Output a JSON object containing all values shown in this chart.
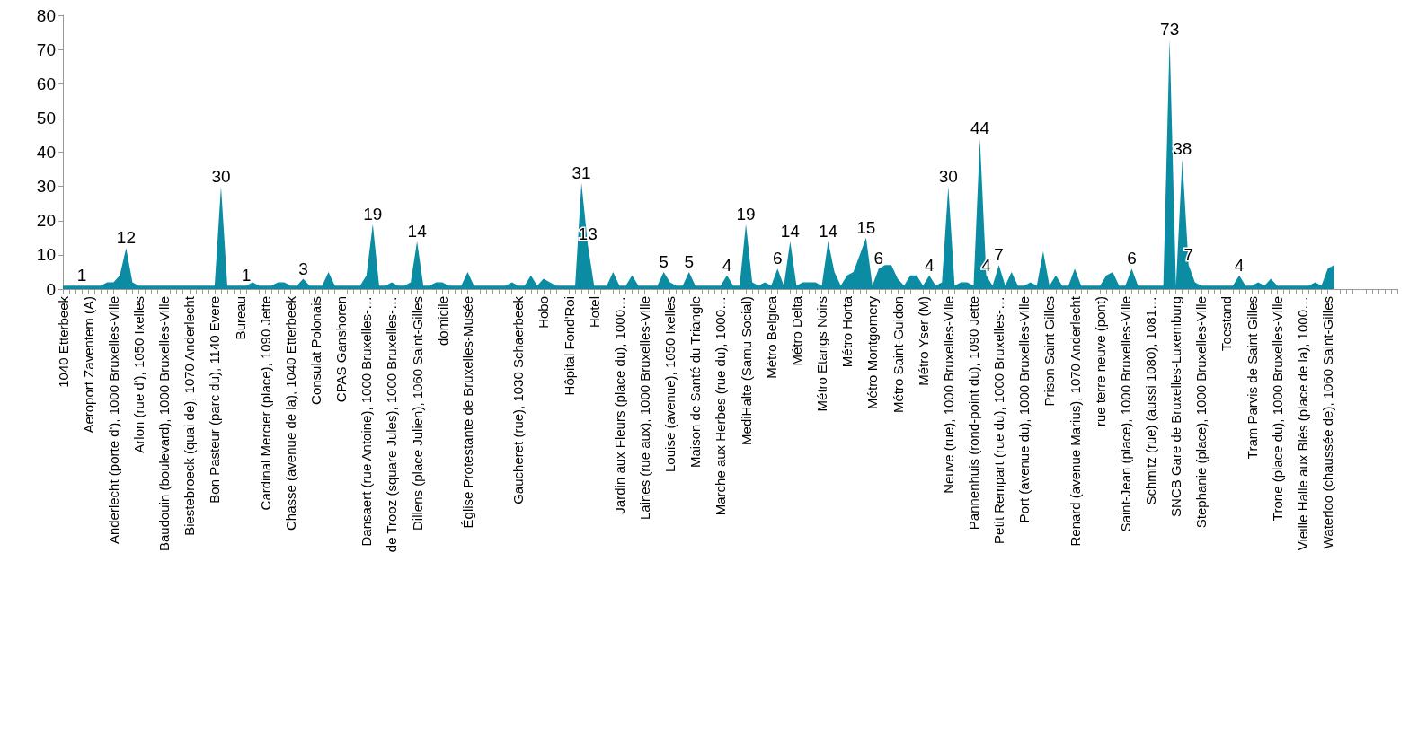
{
  "chart_data": {
    "type": "area",
    "categories": [
      "1040 Etterbeek",
      null,
      null,
      null,
      "Aeroport Zaventem (A)",
      null,
      null,
      null,
      "Anderlecht (porte d'), 1000 Bruxelles-Ville",
      null,
      null,
      null,
      "Arlon (rue d'), 1050 Ixelles",
      null,
      null,
      null,
      "Baudouin (boulevard), 1000 Bruxelles-Ville",
      null,
      null,
      null,
      "Biestebroeck (quai de), 1070 Anderlecht",
      null,
      null,
      null,
      "Bon Pasteur (parc du), 1140 Evere",
      null,
      null,
      null,
      "Bureau",
      null,
      null,
      null,
      "Cardinal Mercier (place), 1090 Jette",
      null,
      null,
      null,
      "Chasse (avenue de la), 1040 Etterbeek",
      null,
      null,
      null,
      "Consulat Polonais",
      null,
      null,
      null,
      "CPAS Ganshoren",
      null,
      null,
      null,
      "Dansaert (rue Antoine), 1000 Bruxelles-…",
      null,
      null,
      null,
      "de Trooz (square Jules), 1000 Bruxelles-…",
      null,
      null,
      null,
      "Dillens (place Julien), 1060 Saint-Gilles",
      null,
      null,
      null,
      "domicile",
      null,
      null,
      null,
      "Église Protestante de Bruxelles-Musée",
      null,
      null,
      null,
      null,
      null,
      null,
      null,
      "Gaucheret (rue), 1030 Schaerbeek",
      null,
      null,
      null,
      "Hobo",
      null,
      null,
      null,
      "Hôpital Fond'Roi",
      null,
      null,
      null,
      "Hotel",
      null,
      null,
      null,
      "Jardin aux Fleurs (place du), 1000…",
      null,
      null,
      null,
      "Laines (rue aux), 1000 Bruxelles-Ville",
      null,
      null,
      null,
      "Louise (avenue), 1050 Ixelles",
      null,
      null,
      null,
      "Maison de Santé du Triangle",
      null,
      null,
      null,
      "Marche aux Herbes (rue du), 1000…",
      null,
      null,
      null,
      "MediHalte (Samu Social)",
      null,
      null,
      null,
      "Métro Belgica",
      null,
      null,
      null,
      "Métro Delta",
      null,
      null,
      null,
      "Métro Etangs Noirs",
      null,
      null,
      null,
      "Métro Horta",
      null,
      null,
      null,
      "Métro Montgomery",
      null,
      null,
      null,
      "Métro Saint-Guidon",
      null,
      null,
      null,
      "Métro Yser (M)",
      null,
      null,
      null,
      "Neuve (rue), 1000 Bruxelles-Ville",
      null,
      null,
      null,
      "Pannenhuis (rond-point du), 1090 Jette",
      null,
      null,
      null,
      "Petit Rempart (rue du), 1000 Bruxelles-…",
      null,
      null,
      null,
      "Port (avenue du), 1000 Bruxelles-Ville",
      null,
      null,
      null,
      "Prison Saint Gilles",
      null,
      null,
      null,
      "Renard (avenue Marius), 1070 Anderlecht",
      null,
      null,
      null,
      "rue terre neuve (pont)",
      null,
      null,
      null,
      "Saint-Jean (place), 1000 Bruxelles-Ville",
      null,
      null,
      null,
      "Schmitz (rue) (aussi 1080), 1081…",
      null,
      null,
      null,
      "SNCB Gare de Bruxelles-Luxemburg",
      null,
      null,
      null,
      "Stephanie (place), 1000 Bruxelles-Ville",
      null,
      null,
      null,
      "Toestand",
      null,
      null,
      null,
      "Tram Parvis de Saint Gilles",
      null,
      null,
      null,
      "Trone (place du), 1000 Bruxelles-Ville",
      null,
      null,
      null,
      "Vieille Halle aux Blés (place de la), 1000…",
      null,
      null,
      null,
      "Waterloo (chaussée de), 1060 Saint-Gilles",
      null,
      null,
      null,
      null,
      null,
      null,
      null,
      null,
      null,
      null,
      null
    ],
    "values": [
      1,
      1,
      1,
      1,
      1,
      1,
      1,
      2,
      2,
      4,
      12,
      2,
      1,
      1,
      1,
      1,
      1,
      1,
      1,
      1,
      1,
      1,
      1,
      1,
      1,
      30,
      1,
      1,
      1,
      1,
      2,
      1,
      1,
      1,
      2,
      2,
      1,
      1,
      3,
      1,
      1,
      1,
      5,
      1,
      1,
      1,
      1,
      1,
      4,
      19,
      1,
      1,
      2,
      1,
      1,
      2,
      14,
      1,
      1,
      2,
      2,
      1,
      1,
      1,
      5,
      1,
      1,
      1,
      1,
      1,
      1,
      2,
      1,
      1,
      4,
      1,
      3,
      2,
      1,
      1,
      1,
      1,
      31,
      13,
      1,
      1,
      1,
      5,
      1,
      1,
      4,
      1,
      1,
      1,
      1,
      5,
      2,
      1,
      1,
      5,
      1,
      1,
      1,
      1,
      1,
      4,
      1,
      1,
      19,
      2,
      1,
      2,
      1,
      6,
      1,
      14,
      1,
      2,
      2,
      2,
      1,
      14,
      5,
      1,
      4,
      5,
      10,
      15,
      1,
      6,
      7,
      7,
      3,
      1,
      4,
      4,
      1,
      4,
      1,
      2,
      30,
      1,
      2,
      2,
      1,
      44,
      4,
      1,
      7,
      1,
      5,
      1,
      1,
      2,
      1,
      11,
      1,
      4,
      1,
      1,
      6,
      1,
      1,
      1,
      1,
      4,
      5,
      1,
      1,
      6,
      1,
      1,
      1,
      1,
      1,
      73,
      1,
      38,
      7,
      2,
      1,
      1,
      1,
      1,
      1,
      1,
      4,
      1,
      1,
      2,
      1,
      3,
      1,
      1,
      1,
      1,
      1,
      1,
      2,
      1,
      6,
      7,
      null,
      null,
      null,
      null,
      null,
      null,
      null,
      null,
      null,
      null
    ],
    "value_labels": [
      null,
      null,
      null,
      "1",
      null,
      null,
      null,
      null,
      null,
      null,
      "12",
      null,
      null,
      null,
      null,
      null,
      null,
      null,
      null,
      null,
      null,
      null,
      null,
      null,
      null,
      "30",
      null,
      null,
      null,
      "1",
      null,
      null,
      null,
      null,
      null,
      null,
      null,
      null,
      "3",
      null,
      null,
      null,
      null,
      null,
      null,
      null,
      null,
      null,
      null,
      "19",
      null,
      null,
      null,
      null,
      null,
      null,
      "14",
      null,
      null,
      null,
      null,
      null,
      null,
      null,
      null,
      null,
      null,
      null,
      null,
      null,
      null,
      null,
      null,
      null,
      null,
      null,
      null,
      null,
      null,
      null,
      null,
      null,
      "31",
      "13",
      null,
      null,
      null,
      null,
      null,
      null,
      null,
      null,
      null,
      null,
      null,
      "5",
      null,
      null,
      null,
      "5",
      null,
      null,
      null,
      null,
      null,
      "4",
      null,
      null,
      "19",
      null,
      null,
      null,
      null,
      "6",
      null,
      "14",
      null,
      null,
      null,
      null,
      null,
      "14",
      null,
      null,
      null,
      null,
      null,
      "15",
      null,
      "6",
      null,
      null,
      null,
      null,
      null,
      null,
      null,
      "4",
      null,
      null,
      "30",
      null,
      null,
      null,
      null,
      "44",
      "4",
      null,
      "7",
      null,
      null,
      null,
      null,
      null,
      null,
      null,
      null,
      null,
      null,
      null,
      null,
      null,
      null,
      null,
      null,
      null,
      null,
      null,
      null,
      "6",
      null,
      null,
      null,
      null,
      null,
      "73",
      null,
      "38",
      "7",
      null,
      null,
      null,
      null,
      null,
      null,
      null,
      "4",
      null,
      null,
      null,
      null,
      null,
      null,
      null,
      null,
      null,
      null,
      null,
      null,
      null,
      null,
      null,
      null,
      null,
      null,
      null,
      null,
      null,
      null,
      null,
      null,
      null
    ],
    "color": "#0b8ca3",
    "ylim": [
      0,
      80
    ],
    "yticks": [
      0,
      10,
      20,
      30,
      40,
      50,
      60,
      70,
      80
    ]
  }
}
